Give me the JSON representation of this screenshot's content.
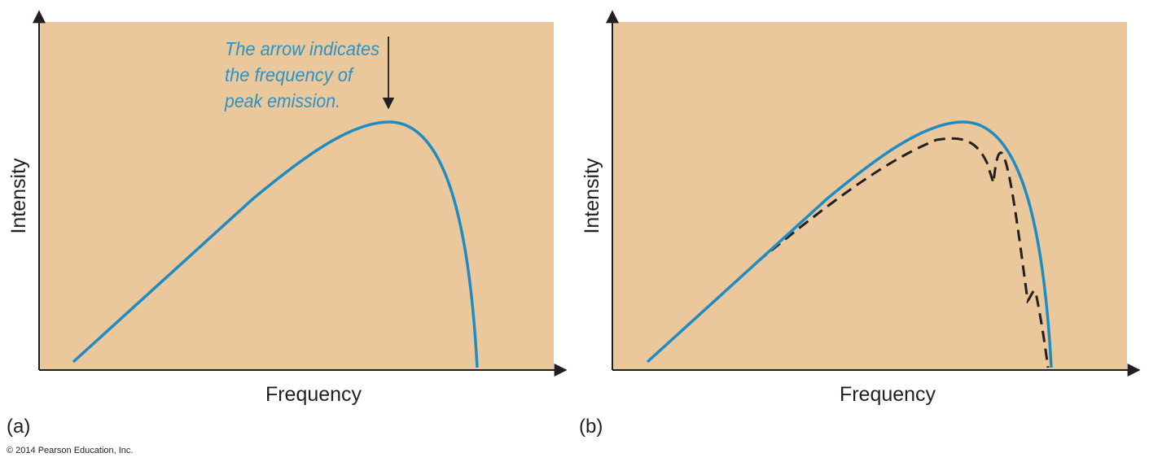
{
  "panels": [
    {
      "label": "(a)",
      "y_axis_label": "Intensity",
      "x_axis_label": "Frequency",
      "annotation": [
        "The arrow indicates",
        "the frequency of",
        "peak emission."
      ]
    },
    {
      "label": "(b)",
      "y_axis_label": "Intensity",
      "x_axis_label": "Frequency"
    }
  ],
  "copyright": "© 2014 Pearson Education, Inc."
}
